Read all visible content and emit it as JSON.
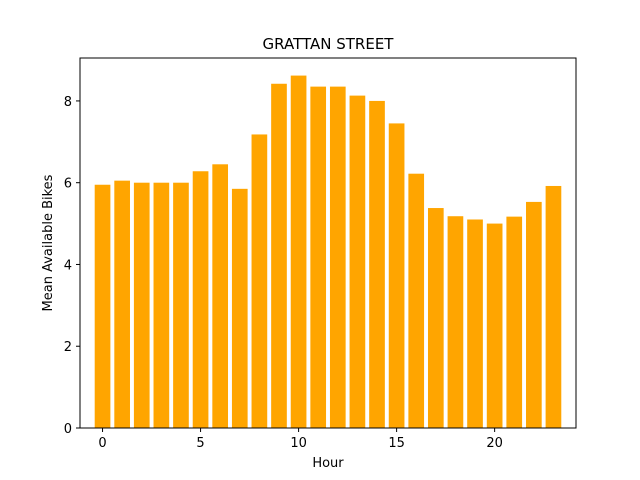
{
  "chart_data": {
    "type": "bar",
    "title": "GRATTAN STREET",
    "xlabel": "Hour",
    "ylabel": "Mean Available Bikes",
    "x": [
      0,
      1,
      2,
      3,
      4,
      5,
      6,
      7,
      8,
      9,
      10,
      11,
      12,
      13,
      14,
      15,
      16,
      17,
      18,
      19,
      20,
      21,
      22,
      23
    ],
    "values": [
      5.95,
      6.05,
      6.0,
      6.0,
      6.0,
      6.28,
      6.45,
      5.85,
      7.18,
      8.42,
      8.62,
      8.35,
      8.35,
      8.13,
      8.0,
      7.45,
      6.22,
      5.38,
      5.18,
      5.1,
      5.0,
      5.17,
      5.53,
      5.92
    ],
    "xlim": [
      -1.15,
      24.15
    ],
    "ylim": [
      0,
      9.05
    ],
    "xticks": [
      0,
      5,
      10,
      15,
      20
    ],
    "yticks": [
      0,
      2,
      4,
      6,
      8
    ],
    "bar_color": "#ffa500",
    "grid": false,
    "legend": "none"
  }
}
